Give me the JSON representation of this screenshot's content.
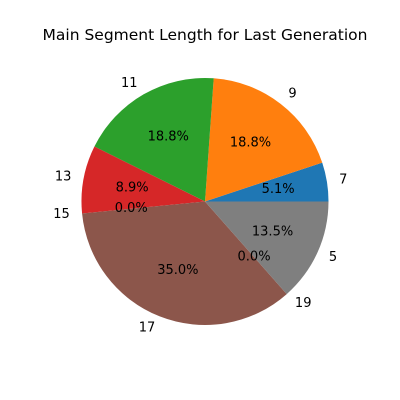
{
  "chart_data": {
    "type": "pie",
    "title": "Main Segment Length for Last Generation",
    "slices": [
      {
        "label": "7",
        "value": 5.1,
        "pct_label": "5.1%",
        "color": "#1f77b4"
      },
      {
        "label": "9",
        "value": 18.8,
        "pct_label": "18.8%",
        "color": "#ff7f0e"
      },
      {
        "label": "11",
        "value": 18.8,
        "pct_label": "18.8%",
        "color": "#2ca02c"
      },
      {
        "label": "13",
        "value": 8.9,
        "pct_label": "8.9%",
        "color": "#d62728"
      },
      {
        "label": "15",
        "value": 0.0,
        "pct_label": "0.0%",
        "color": "#9467bd"
      },
      {
        "label": "17",
        "value": 35.0,
        "pct_label": "35.0%",
        "color": "#8c564b"
      },
      {
        "label": "19",
        "value": 0.0,
        "pct_label": "0.0%",
        "color": "#e377c2"
      },
      {
        "label": "5",
        "value": 13.5,
        "pct_label": "13.5%",
        "color": "#7f7f7f"
      }
    ],
    "start_angle_deg": 0,
    "direction": "counterclockwise",
    "legend": "none"
  }
}
